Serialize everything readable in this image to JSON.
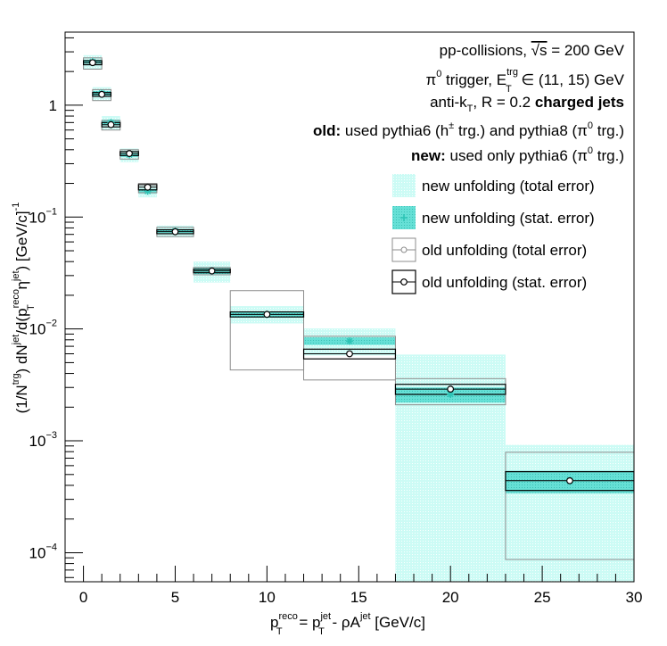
{
  "chart_data": {
    "type": "scatter",
    "info_lines": [
      [
        "pp-collisions, ",
        "√s",
        " = 200 GeV"
      ],
      [
        "π",
        "0",
        " trigger, E",
        "T",
        "trg",
        " ∈ (11, 15) GeV"
      ],
      [
        "anti-k",
        "T",
        ", R = 0.2 ",
        "charged jets"
      ],
      [
        "old:",
        " used pythia6 (h",
        "±",
        " trg.) and pythia8 (π",
        "0",
        " trg.)"
      ],
      [
        "new:",
        " used only pythia6 (π",
        "0",
        " trg.)"
      ]
    ],
    "xlabel_parts": [
      "p",
      "T",
      "reco",
      " = p",
      "T",
      "jet",
      " - ρA",
      "jet",
      " [GeV/c]"
    ],
    "ylabel_parts": [
      "(1/N",
      "trg",
      ") dN",
      "jet",
      "/d(p",
      "T",
      "reco",
      " η",
      "jet",
      ") [GeV/c]",
      "-1"
    ],
    "xlim": [
      -1,
      30
    ],
    "ylim": [
      5.5e-05,
      4.5
    ],
    "log_y": true,
    "x_ticks": [
      0,
      5,
      10,
      15,
      20,
      25,
      30
    ],
    "y_ticks": [
      {
        "value": 1,
        "base": "1",
        "exp": ""
      },
      {
        "value": 0.1,
        "base": "10",
        "exp": "−1"
      },
      {
        "value": 0.01,
        "base": "10",
        "exp": "−2"
      },
      {
        "value": 0.001,
        "base": "10",
        "exp": "−3"
      },
      {
        "value": 0.0001,
        "base": "10",
        "exp": "−4"
      }
    ],
    "legend_placement": "top-right",
    "legend": [
      {
        "name": "new unfolding (total error)",
        "style": "new-total"
      },
      {
        "name": "new unfolding (stat. error)",
        "style": "new-stat"
      },
      {
        "name": "old unfolding (total error)",
        "style": "old-total"
      },
      {
        "name": "old unfolding (stat. error)",
        "style": "old-stat"
      }
    ],
    "colors": {
      "new_total_fill": "#ccfbf5",
      "new_stat_fill": "#66e0d6",
      "new_marker": "#2ec4b6",
      "old_total_line": "#8c8c8c",
      "old_stat_line": "#000000"
    },
    "bins": [
      {
        "xlo": 0.0,
        "xhi": 1.0,
        "old": 2.4,
        "old_total": [
          2.1,
          2.65
        ],
        "old_stat": [
          2.3,
          2.5
        ],
        "new": 2.45,
        "new_total": [
          2.1,
          2.8
        ],
        "new_stat": [
          2.35,
          2.55
        ]
      },
      {
        "xlo": 0.5,
        "xhi": 1.5,
        "old": 1.25,
        "old_total": [
          1.1,
          1.38
        ],
        "old_stat": [
          1.2,
          1.3
        ],
        "new": 1.28,
        "new_total": [
          1.1,
          1.45
        ],
        "new_stat": [
          1.22,
          1.34
        ]
      },
      {
        "xlo": 1.0,
        "xhi": 2.0,
        "old": 0.67,
        "old_total": [
          0.6,
          0.73
        ],
        "old_stat": [
          0.64,
          0.7
        ],
        "new": 0.7,
        "new_total": [
          0.6,
          0.8
        ],
        "new_stat": [
          0.66,
          0.74
        ]
      },
      {
        "xlo": 2.0,
        "xhi": 3.0,
        "old": 0.37,
        "old_total": [
          0.33,
          0.4
        ],
        "old_stat": [
          0.355,
          0.385
        ],
        "new": 0.36,
        "new_total": [
          0.31,
          0.41
        ],
        "new_stat": [
          0.345,
          0.375
        ]
      },
      {
        "xlo": 3.0,
        "xhi": 4.0,
        "old": 0.185,
        "old_total": [
          0.165,
          0.2
        ],
        "old_stat": [
          0.175,
          0.195
        ],
        "new": 0.17,
        "new_total": [
          0.15,
          0.19
        ],
        "new_stat": [
          0.163,
          0.178
        ]
      },
      {
        "xlo": 4.0,
        "xhi": 6.0,
        "old": 0.074,
        "old_total": [
          0.067,
          0.081
        ],
        "old_stat": [
          0.071,
          0.077
        ],
        "new": 0.075,
        "new_total": [
          0.066,
          0.084
        ],
        "new_stat": [
          0.072,
          0.078
        ]
      },
      {
        "xlo": 6.0,
        "xhi": 8.0,
        "old": 0.033,
        "old_total": [
          0.0305,
          0.0355
        ],
        "old_stat": [
          0.0318,
          0.0342
        ],
        "new": 0.033,
        "new_total": [
          0.026,
          0.04
        ],
        "new_stat": [
          0.031,
          0.035
        ]
      },
      {
        "xlo": 8.0,
        "xhi": 12.0,
        "old": 0.0135,
        "old_total": [
          0.0043,
          0.022
        ],
        "old_stat": [
          0.0128,
          0.0142
        ],
        "new": 0.0135,
        "new_total": [
          0.0112,
          0.016
        ],
        "new_stat": [
          0.0128,
          0.0142
        ]
      },
      {
        "xlo": 12.0,
        "xhi": 17.0,
        "old": 0.006,
        "old_total": [
          0.0035,
          0.0086
        ],
        "old_stat": [
          0.0054,
          0.0066
        ],
        "new": 0.0078,
        "new_total": [
          0.0058,
          0.0101
        ],
        "new_stat": [
          0.0072,
          0.0084
        ]
      },
      {
        "xlo": 17.0,
        "xhi": 23.0,
        "old": 0.0029,
        "old_total": [
          0.0021,
          0.0036
        ],
        "old_stat": [
          0.0026,
          0.0032
        ],
        "new": 0.0026,
        "new_total": [
          5.5e-05,
          0.0059
        ],
        "new_stat": [
          0.0022,
          0.003
        ]
      },
      {
        "xlo": 23.0,
        "xhi": 30.0,
        "old": 0.00044,
        "old_total": [
          8.7e-05,
          0.00079
        ],
        "old_stat": [
          0.00036,
          0.00053
        ],
        "new": 0.00044,
        "new_total": [
          5.5e-05,
          0.00092
        ],
        "new_stat": [
          0.00034,
          0.00054
        ]
      }
    ]
  }
}
